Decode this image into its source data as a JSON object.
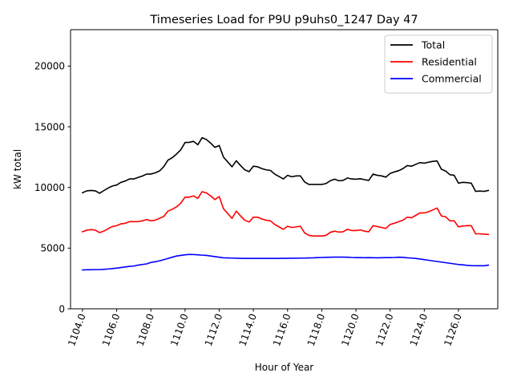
{
  "chart_data": {
    "type": "line",
    "title": "Timeseries Load for P9U p9uhs0_1247  Day 47",
    "xlabel": "Hour of Year",
    "ylabel": "kW total",
    "xlim": [
      1103.3,
      1128.3
    ],
    "ylim": [
      0,
      23000
    ],
    "xticks": [
      1104,
      1106,
      1108,
      1110,
      1112,
      1114,
      1116,
      1118,
      1120,
      1122,
      1124,
      1126
    ],
    "xtick_labels": [
      "1104.0",
      "1106.0",
      "1108.0",
      "1110.0",
      "1112.0",
      "1114.0",
      "1116.0",
      "1118.0",
      "1120.0",
      "1122.0",
      "1124.0",
      "1126.0"
    ],
    "yticks": [
      0,
      5000,
      10000,
      15000,
      20000
    ],
    "ytick_labels": [
      "0",
      "5000",
      "10000",
      "15000",
      "20000"
    ],
    "legend_position": "top-right",
    "x": [
      1104.0,
      1104.25,
      1104.5,
      1104.75,
      1105.0,
      1105.25,
      1105.5,
      1105.75,
      1106.0,
      1106.25,
      1106.5,
      1106.75,
      1107.0,
      1107.25,
      1107.5,
      1107.75,
      1108.0,
      1108.25,
      1108.5,
      1108.75,
      1109.0,
      1109.25,
      1109.5,
      1109.75,
      1110.0,
      1110.25,
      1110.5,
      1110.75,
      1111.0,
      1111.25,
      1111.5,
      1111.75,
      1112.0,
      1112.25,
      1112.5,
      1112.75,
      1113.0,
      1113.25,
      1113.5,
      1113.75,
      1114.0,
      1114.25,
      1114.5,
      1114.75,
      1115.0,
      1115.25,
      1115.5,
      1115.75,
      1116.0,
      1116.25,
      1116.5,
      1116.75,
      1117.0,
      1117.25,
      1117.5,
      1117.75,
      1118.0,
      1118.25,
      1118.5,
      1118.75,
      1119.0,
      1119.25,
      1119.5,
      1119.75,
      1120.0,
      1120.25,
      1120.5,
      1120.75,
      1121.0,
      1121.25,
      1121.5,
      1121.75,
      1122.0,
      1122.25,
      1122.5,
      1122.75,
      1123.0,
      1123.25,
      1123.5,
      1123.75,
      1124.0,
      1124.25,
      1124.5,
      1124.75,
      1125.0,
      1125.25,
      1125.5,
      1125.75,
      1126.0,
      1126.25,
      1126.5,
      1126.75,
      1127.0,
      1127.25,
      1127.5,
      1127.75
    ],
    "series": [
      {
        "name": "Total",
        "color": "#000000",
        "values": [
          9560,
          9720,
          9750,
          9720,
          9520,
          9740,
          9950,
          10120,
          10200,
          10420,
          10530,
          10700,
          10700,
          10820,
          10940,
          11100,
          11100,
          11200,
          11350,
          11700,
          12250,
          12450,
          12750,
          13100,
          13700,
          13720,
          13800,
          13520,
          14100,
          13950,
          13650,
          13300,
          13460,
          12500,
          12100,
          11700,
          12200,
          11800,
          11450,
          11300,
          11750,
          11700,
          11550,
          11450,
          11400,
          11100,
          10900,
          10700,
          11000,
          10880,
          10950,
          10950,
          10450,
          10250,
          10250,
          10250,
          10250,
          10320,
          10550,
          10680,
          10550,
          10580,
          10780,
          10700,
          10680,
          10720,
          10640,
          10580,
          11100,
          11000,
          10950,
          10850,
          11150,
          11280,
          11380,
          11550,
          11800,
          11750,
          11900,
          12050,
          12000,
          12080,
          12150,
          12180,
          11500,
          11350,
          11050,
          11000,
          10350,
          10420,
          10400,
          10350,
          9680,
          9700,
          9680,
          9750
        ]
      },
      {
        "name": "Residential",
        "color": "#ff0000",
        "values": [
          6350,
          6480,
          6520,
          6480,
          6280,
          6400,
          6600,
          6780,
          6850,
          7000,
          7050,
          7180,
          7180,
          7180,
          7250,
          7350,
          7250,
          7300,
          7450,
          7600,
          8050,
          8200,
          8400,
          8700,
          9200,
          9200,
          9300,
          9100,
          9650,
          9550,
          9300,
          9000,
          9250,
          8250,
          7850,
          7450,
          8050,
          7650,
          7300,
          7150,
          7550,
          7550,
          7400,
          7300,
          7250,
          6950,
          6750,
          6550,
          6800,
          6700,
          6750,
          6800,
          6250,
          6050,
          6000,
          6000,
          6000,
          6050,
          6300,
          6400,
          6320,
          6350,
          6550,
          6450,
          6450,
          6500,
          6400,
          6350,
          6850,
          6780,
          6700,
          6620,
          6950,
          7050,
          7180,
          7300,
          7550,
          7500,
          7700,
          7900,
          7900,
          8000,
          8150,
          8300,
          7650,
          7580,
          7250,
          7250,
          6750,
          6820,
          6850,
          6850,
          6180,
          6180,
          6150,
          6130
        ]
      },
      {
        "name": "Commercial",
        "color": "#0000ff",
        "values": [
          3200,
          3220,
          3220,
          3230,
          3230,
          3250,
          3280,
          3320,
          3350,
          3400,
          3450,
          3500,
          3520,
          3600,
          3650,
          3700,
          3820,
          3880,
          3950,
          4050,
          4150,
          4250,
          4350,
          4400,
          4450,
          4480,
          4470,
          4450,
          4420,
          4400,
          4350,
          4300,
          4250,
          4200,
          4190,
          4180,
          4170,
          4160,
          4150,
          4150,
          4150,
          4150,
          4150,
          4150,
          4150,
          4150,
          4150,
          4160,
          4160,
          4170,
          4170,
          4180,
          4180,
          4190,
          4200,
          4220,
          4230,
          4240,
          4250,
          4260,
          4260,
          4260,
          4250,
          4230,
          4220,
          4220,
          4210,
          4220,
          4210,
          4200,
          4210,
          4220,
          4220,
          4230,
          4250,
          4240,
          4200,
          4180,
          4150,
          4100,
          4050,
          4000,
          3950,
          3900,
          3850,
          3800,
          3750,
          3700,
          3650,
          3620,
          3580,
          3560,
          3550,
          3550,
          3550,
          3600
        ]
      }
    ]
  }
}
